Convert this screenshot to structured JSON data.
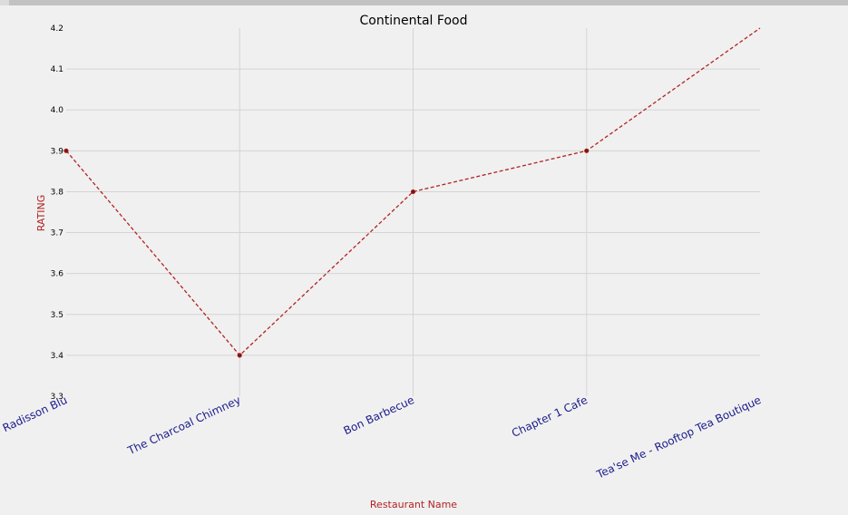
{
  "chart_data": {
    "type": "line",
    "title": "Continental Food",
    "xlabel": "Restaurant Name",
    "ylabel": "RATING",
    "categories": [
      "The Latitude - Radisson Blu",
      "The Charcoal Chimney",
      "Bon Barbecue",
      "Chapter 1 Cafe",
      "Tea'se Me - Rooftop Tea Boutique"
    ],
    "series": [
      {
        "name": "RATING",
        "values": [
          3.9,
          3.4,
          3.8,
          3.9,
          4.2
        ]
      }
    ],
    "ylim": [
      3.3,
      4.2
    ],
    "yticks": [
      "3.3",
      "3.4",
      "3.5",
      "3.6",
      "3.7",
      "3.8",
      "3.9",
      "4.0",
      "4.1",
      "4.2"
    ],
    "grid": true,
    "colors": {
      "line": "#b22222",
      "axis_label": "#b22222",
      "tick_label_x": "#1a1a8c",
      "grid": "#d4d4d4",
      "background": "#f0f0f0"
    }
  }
}
